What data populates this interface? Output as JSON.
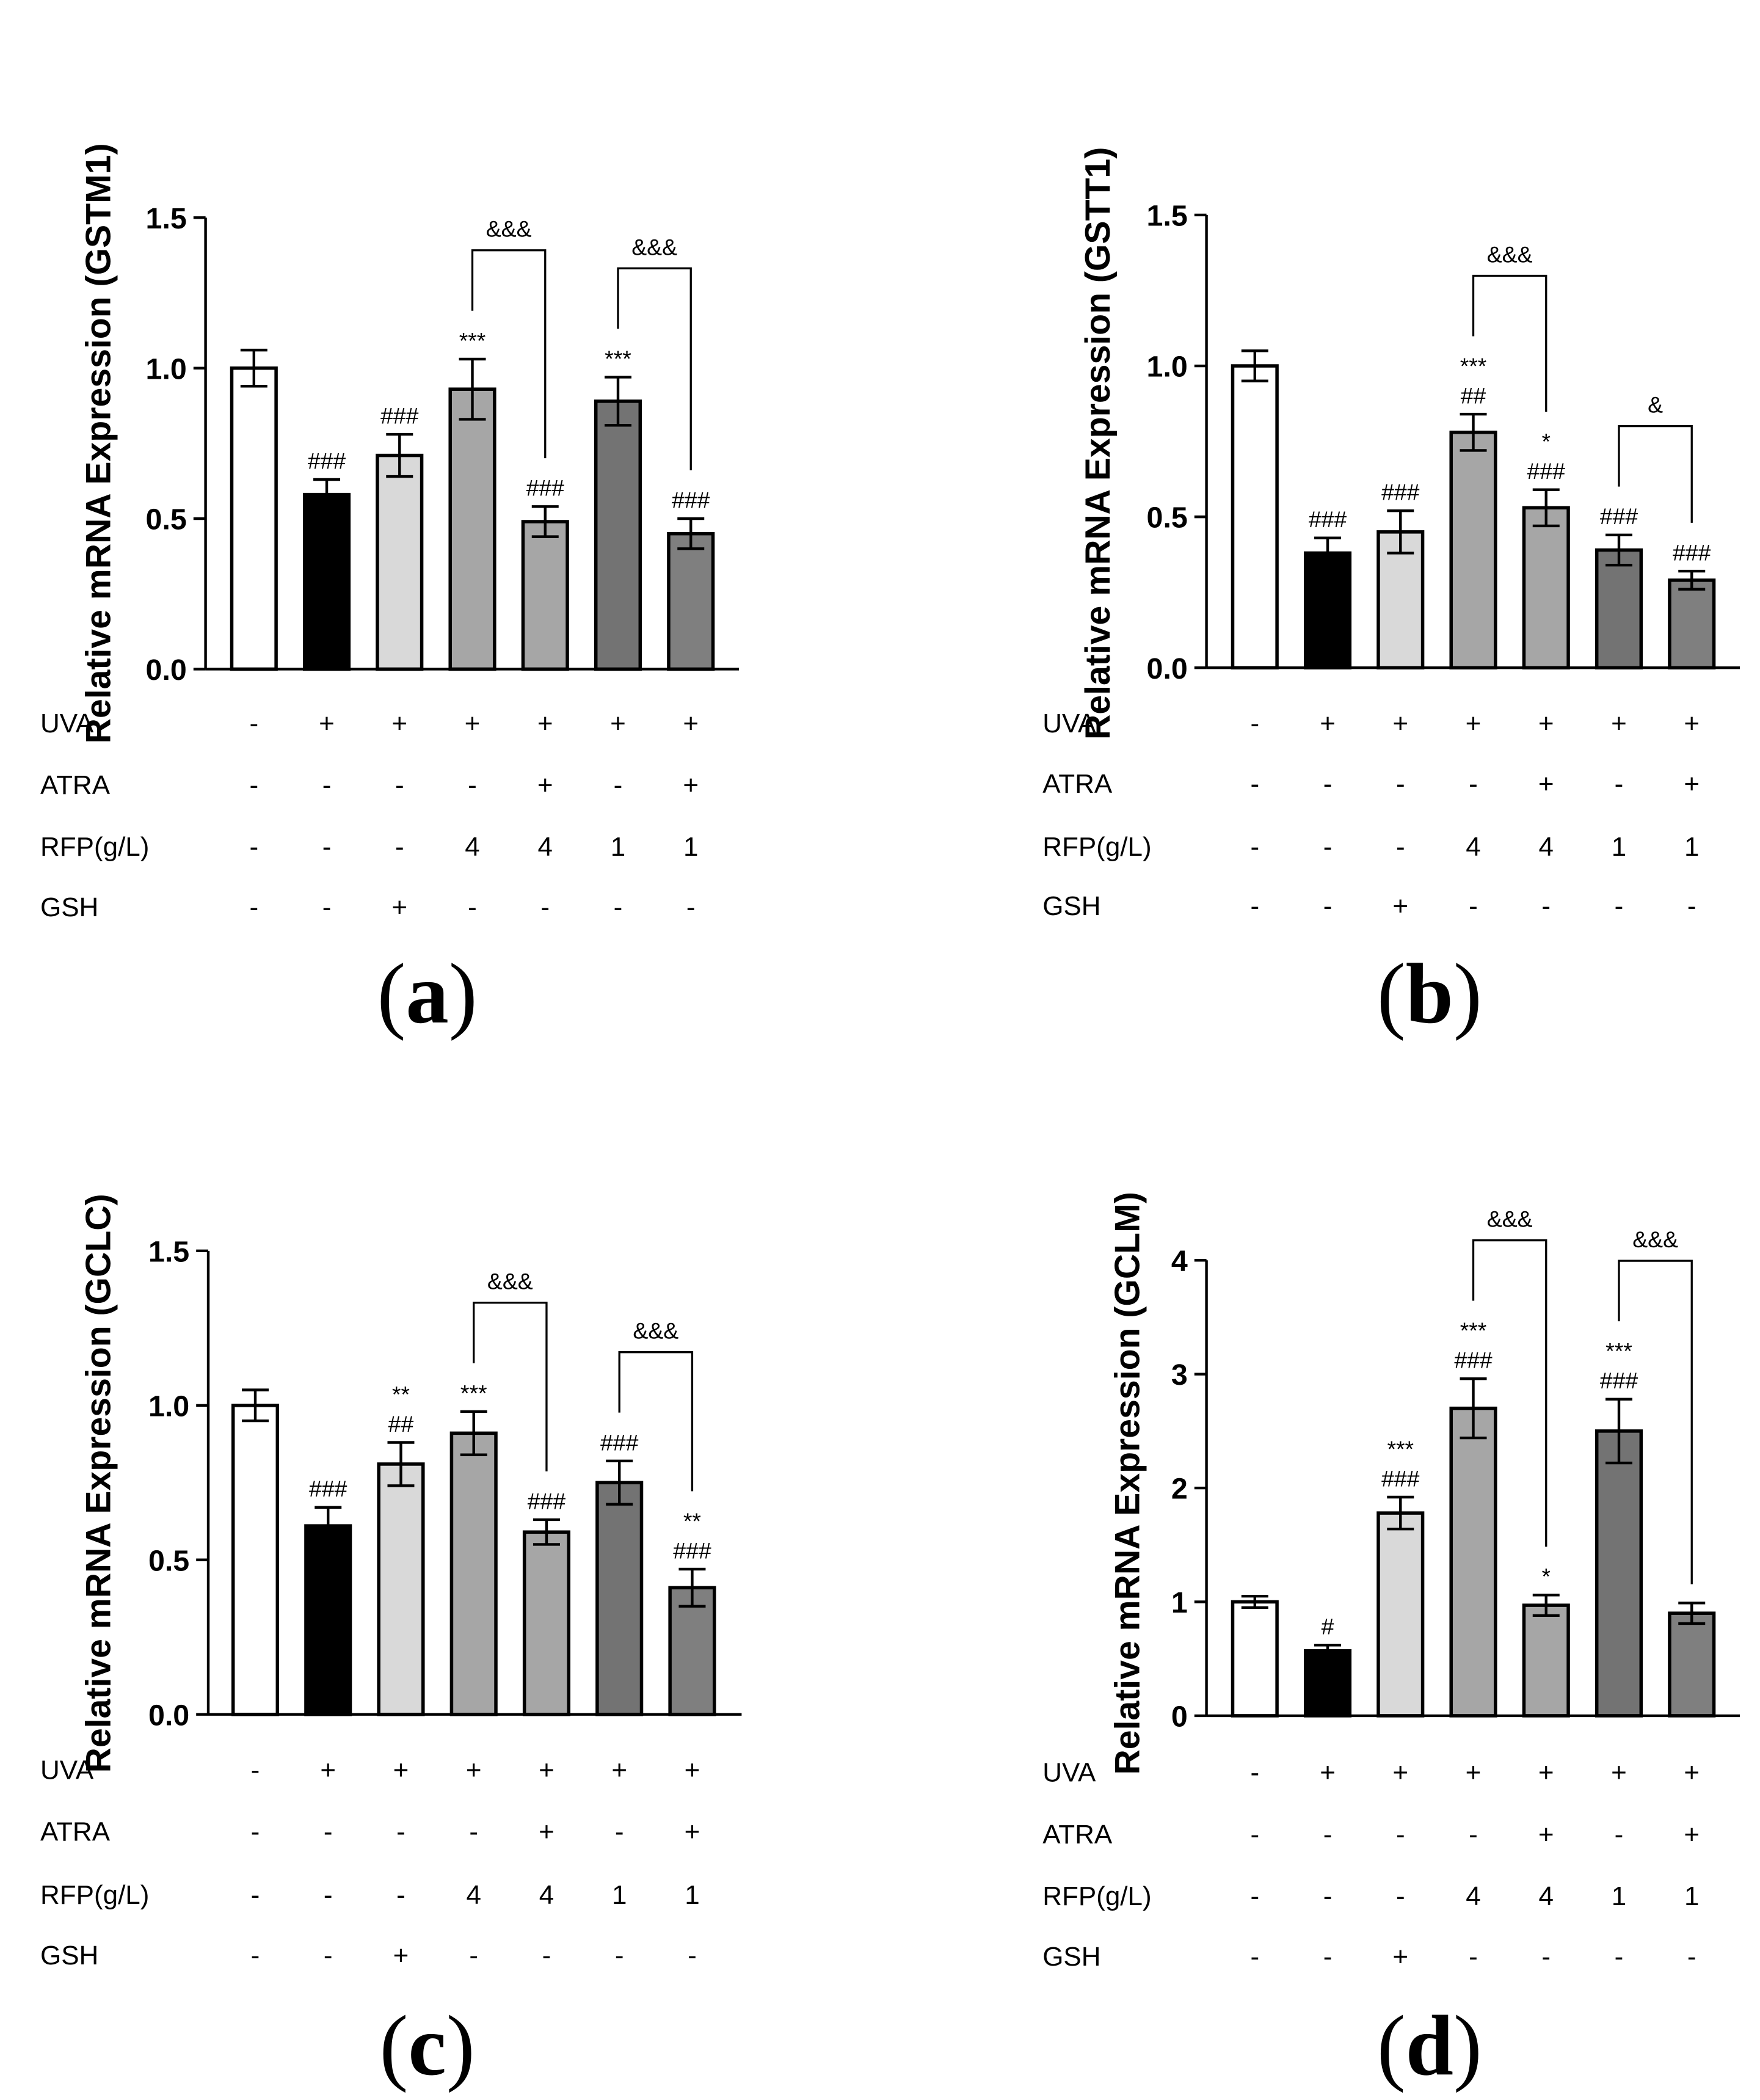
{
  "colors": {
    "bars": [
      "#ffffff",
      "#000000",
      "#d9d9d9",
      "#a6a6a6",
      "#a6a6a6",
      "#737373",
      "#7f7f7f"
    ],
    "stroke": "#000000"
  },
  "condition_labels": [
    "UVA",
    "ATRA",
    "RFP(g/L)",
    "GSH"
  ],
  "conditions": [
    [
      "-",
      "+",
      "+",
      "+",
      "+",
      "+",
      "+"
    ],
    [
      "-",
      "-",
      "-",
      "-",
      "+",
      "-",
      "+"
    ],
    [
      "-",
      "-",
      "-",
      "4",
      "4",
      "1",
      "1"
    ],
    [
      "-",
      "-",
      "+",
      "-",
      "-",
      "-",
      "-"
    ]
  ],
  "chart_data": [
    {
      "type": "bar",
      "panel": "a",
      "ylabel": "Relative mRNA Expression (GSTM1)",
      "ylim": [
        0,
        1.5
      ],
      "yticks": [
        "0.0",
        "0.5",
        "1.0",
        "1.5"
      ],
      "values": [
        1.0,
        0.58,
        0.71,
        0.93,
        0.49,
        0.89,
        0.45
      ],
      "errors": [
        0.06,
        0.05,
        0.07,
        0.1,
        0.05,
        0.08,
        0.05
      ],
      "annotations": [
        [],
        [
          "###"
        ],
        [
          "###"
        ],
        [
          "***"
        ],
        [
          "###"
        ],
        [
          "***"
        ],
        [
          "###"
        ]
      ],
      "brackets": [
        {
          "from": 3,
          "to": 4,
          "label": "&&&"
        },
        {
          "from": 5,
          "to": 6,
          "label": "&&&"
        }
      ]
    },
    {
      "type": "bar",
      "panel": "b",
      "ylabel": "Relative mRNA Expression (GSTT1)",
      "ylim": [
        0,
        1.5
      ],
      "yticks": [
        "0.0",
        "0.5",
        "1.0",
        "1.5"
      ],
      "values": [
        1.0,
        0.38,
        0.45,
        0.78,
        0.53,
        0.39,
        0.29
      ],
      "errors": [
        0.05,
        0.05,
        0.07,
        0.06,
        0.06,
        0.05,
        0.03
      ],
      "annotations": [
        [],
        [
          "###"
        ],
        [
          "###"
        ],
        [
          "***",
          "##"
        ],
        [
          "*",
          "###"
        ],
        [
          "###"
        ],
        [
          "###"
        ]
      ],
      "brackets": [
        {
          "from": 3,
          "to": 4,
          "label": "&&&"
        },
        {
          "from": 5,
          "to": 6,
          "label": "&"
        }
      ]
    },
    {
      "type": "bar",
      "panel": "c",
      "ylabel": "Relative mRNA Expression (GCLC)",
      "ylim": [
        0,
        1.5
      ],
      "yticks": [
        "0.0",
        "0.5",
        "1.0",
        "1.5"
      ],
      "values": [
        1.0,
        0.61,
        0.81,
        0.91,
        0.59,
        0.75,
        0.41
      ],
      "errors": [
        0.05,
        0.06,
        0.07,
        0.07,
        0.04,
        0.07,
        0.06
      ],
      "annotations": [
        [],
        [
          "###"
        ],
        [
          "**",
          "##"
        ],
        [
          "***"
        ],
        [
          "###"
        ],
        [
          "###"
        ],
        [
          "**",
          "###"
        ]
      ],
      "brackets": [
        {
          "from": 3,
          "to": 4,
          "label": "&&&"
        },
        {
          "from": 5,
          "to": 6,
          "label": "&&&"
        }
      ]
    },
    {
      "type": "bar",
      "panel": "d",
      "ylabel": "Relative mRNA Expression (GCLM)",
      "ylim": [
        0,
        4
      ],
      "yticks": [
        "0",
        "1",
        "2",
        "3",
        "4"
      ],
      "values": [
        1.0,
        0.57,
        1.78,
        2.7,
        0.97,
        2.5,
        0.9
      ],
      "errors": [
        0.05,
        0.05,
        0.14,
        0.26,
        0.09,
        0.28,
        0.09
      ],
      "annotations": [
        [],
        [
          "#"
        ],
        [
          "***",
          "###"
        ],
        [
          "***",
          "###"
        ],
        [
          "*"
        ],
        [
          "***",
          "###"
        ],
        []
      ],
      "brackets": [
        {
          "from": 3,
          "to": 4,
          "label": "&&&"
        },
        {
          "from": 5,
          "to": 6,
          "label": "&&&"
        }
      ]
    }
  ],
  "panel_labels": [
    "a",
    "b",
    "c",
    "d"
  ]
}
